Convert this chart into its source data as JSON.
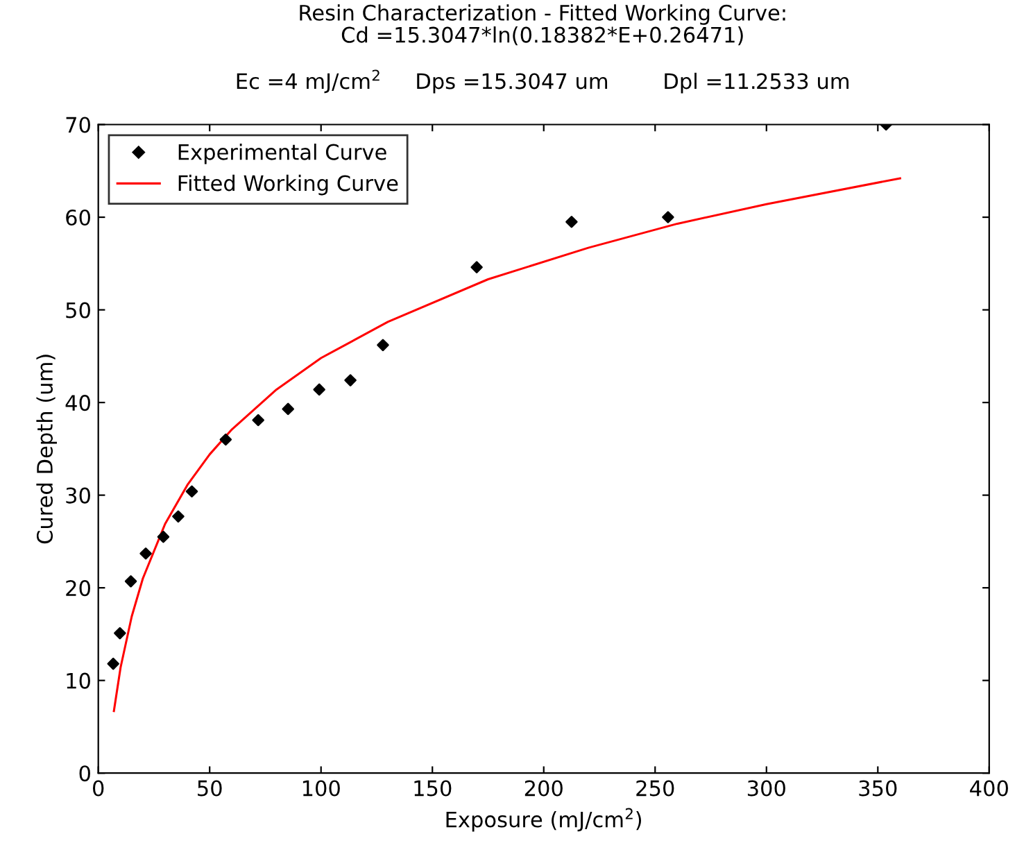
{
  "chart_data": {
    "type": "scatter",
    "title": "Resin Characterization - Fitted Working Curve:\nCd =15.3047*ln(0.18382*E+0.26471)",
    "subtitle": "Ec =4 mJ/cm$^{2}$     Dps =15.3047 um        Dpl =11.2533 um",
    "xlabel": "Exposure (mJ/cm$^{2}$)",
    "ylabel": "Cured Depth (um)",
    "series": [
      {
        "name": "Experimental Curve",
        "color": "#000000",
        "marker": "diamond",
        "x": [
          6.7,
          9.7,
          14.6,
          21.3,
          29.2,
          35.9,
          42.0,
          57.2,
          71.8,
          85.2,
          99.2,
          113.2,
          127.8,
          169.9,
          212.5,
          255.8,
          353.7
        ],
        "values": [
          11.8,
          15.1,
          20.7,
          23.7,
          25.5,
          27.7,
          30.4,
          36.0,
          38.1,
          39.3,
          41.4,
          42.4,
          46.2,
          54.6,
          59.5,
          60.0,
          70.0
        ]
      },
      {
        "name": "Fitted Working Curve",
        "type": "line",
        "color": "#ff0000",
        "marker": "none",
        "line_style": "solid",
        "x": [
          7,
          10,
          15,
          20,
          30,
          40,
          50,
          60,
          80,
          100,
          130,
          175,
          220,
          260,
          300,
          360
        ],
        "values": [
          6.7,
          11.4,
          16.9,
          21.0,
          26.9,
          31.1,
          34.4,
          37.1,
          41.4,
          44.8,
          48.7,
          53.3,
          56.7,
          59.3,
          61.4,
          64.2
        ]
      }
    ],
    "xlim": [
      0,
      400
    ],
    "xticks": [
      0,
      50,
      100,
      150,
      200,
      250,
      300,
      350,
      400
    ],
    "ylim": [
      0,
      70
    ],
    "yticks": [
      0,
      10,
      20,
      30,
      40,
      50,
      60,
      70
    ],
    "grid": false,
    "legend": "top left"
  }
}
